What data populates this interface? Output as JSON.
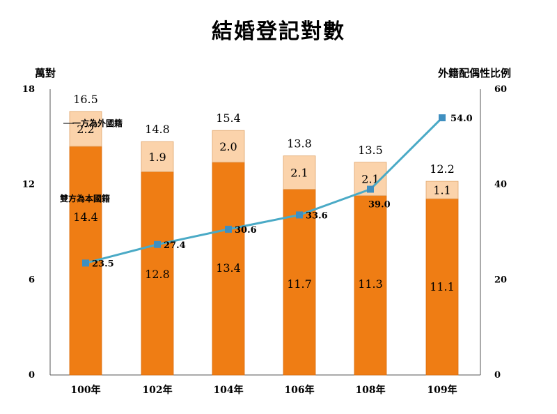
{
  "chart_data": {
    "type": "bar",
    "title": "結婚登記對數",
    "ylabel": "萬對",
    "y2label": "外籍配偶性比例",
    "categories": [
      "100年",
      "102年",
      "104年",
      "106年",
      "108年",
      "109年"
    ],
    "ylim": [
      0,
      18
    ],
    "yticks": [
      0,
      6,
      12,
      18
    ],
    "y2lim": [
      0,
      60
    ],
    "y2ticks": [
      0,
      20,
      40,
      60
    ],
    "stacked": true,
    "series": [
      {
        "name": "雙方為本國籍",
        "values": [
          14.4,
          12.8,
          13.4,
          11.7,
          11.3,
          11.1
        ],
        "color": "#ef7d14"
      },
      {
        "name": "一方為外國籍",
        "values": [
          2.2,
          1.9,
          2.0,
          2.1,
          2.1,
          1.1
        ],
        "color": "#fbd3ab"
      }
    ],
    "totals": [
      16.5,
      14.8,
      15.4,
      13.8,
      13.5,
      12.2
    ],
    "line_series": {
      "values": [
        23.5,
        27.4,
        30.6,
        33.6,
        39.0,
        54.0
      ],
      "labels": [
        "23.5",
        "27.4",
        "30.6",
        "33.6",
        "39.0",
        "54.0"
      ],
      "color": "#4aaac6",
      "axis": "right"
    },
    "annotations": [
      "一方為外國籍",
      "雙方為本國籍"
    ],
    "grid": false
  }
}
